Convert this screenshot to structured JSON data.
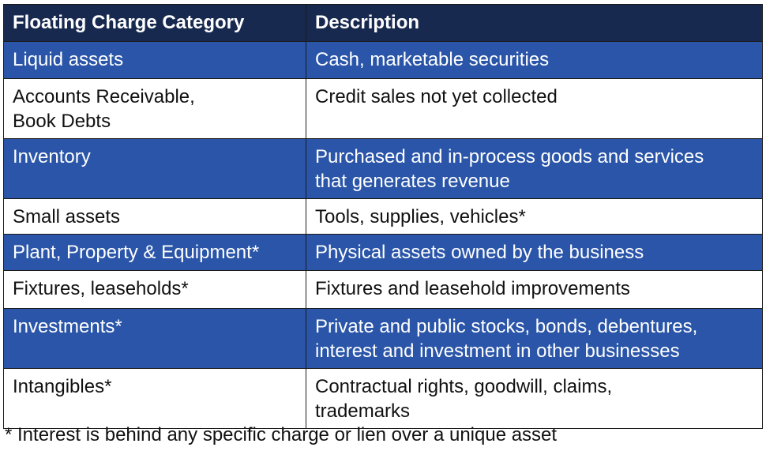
{
  "table": {
    "headers": [
      "Floating Charge Category",
      "Description"
    ],
    "rows": [
      {
        "category": [
          "Liquid assets"
        ],
        "description": [
          "Cash, marketable securities"
        ],
        "style": "band"
      },
      {
        "category": [
          "Accounts Receivable,",
          "Book Debts"
        ],
        "description": [
          "Credit sales not yet collected"
        ],
        "style": "plain"
      },
      {
        "category": [
          "Inventory"
        ],
        "description": [
          "Purchased and in-process goods and services",
          "that generates revenue"
        ],
        "style": "band"
      },
      {
        "category": [
          "Small assets"
        ],
        "description": [
          "Tools, supplies, vehicles*"
        ],
        "style": "plain"
      },
      {
        "category": [
          "Plant, Property & Equipment*"
        ],
        "description": [
          "Physical assets owned by the business"
        ],
        "style": "band"
      },
      {
        "category": [
          "Fixtures, leaseholds*"
        ],
        "description": [
          "Fixtures and leasehold improvements"
        ],
        "style": "plain"
      },
      {
        "category": [
          "Investments*"
        ],
        "description": [
          "Private and public stocks, bonds, debentures,",
          "interest and investment in other businesses"
        ],
        "style": "band"
      },
      {
        "category": [
          "Intangibles*"
        ],
        "description": [
          "Contractual rights, goodwill, claims,",
          "trademarks"
        ],
        "style": "plain"
      }
    ]
  },
  "footnote": "* Interest is behind any specific charge or lien over a unique asset",
  "colors": {
    "header_bg": "#18294f",
    "band_bg": "#2a55a8",
    "plain_bg": "#ffffff",
    "border": "#1a1a1a"
  }
}
